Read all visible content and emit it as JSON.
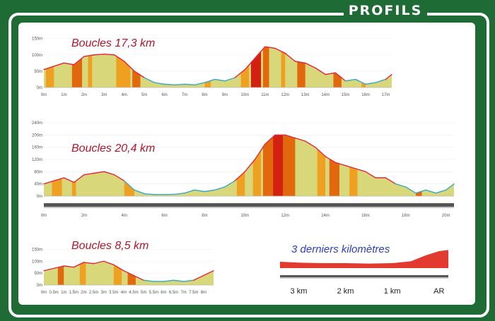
{
  "header": {
    "title": "PROFILS"
  },
  "colors": {
    "frame": "#1f6b35",
    "fill_base": "#d8d77a",
    "orange": "#f0a020",
    "dark_orange": "#e2680e",
    "red": "#d42010",
    "outline": "#e2263a",
    "outline_low": "#39a8c8",
    "inset_blue": "#2a3fbf"
  },
  "chart_data": [
    {
      "type": "area",
      "title": "Boucles 17,3 km",
      "x_ticks": [
        "0m",
        "1m",
        "2m",
        "3m",
        "4m",
        "5m",
        "6m",
        "7m",
        "8m",
        "9m",
        "10m",
        "11m",
        "12m",
        "13m",
        "14m",
        "15m",
        "16m",
        "17m"
      ],
      "y_ticks": [
        "0m",
        "50m",
        "100m",
        "150m"
      ],
      "ylim": [
        0,
        160
      ],
      "xlim": [
        0,
        17.3
      ],
      "x": [
        0,
        0.5,
        1,
        1.5,
        2,
        2.5,
        3,
        3.5,
        4,
        4.5,
        5,
        5.5,
        6,
        6.5,
        7,
        7.5,
        8,
        8.5,
        9,
        9.5,
        10,
        10.5,
        11,
        11.5,
        12,
        12.5,
        13,
        13.5,
        14,
        14.5,
        15,
        15.5,
        16,
        16.5,
        17,
        17.3
      ],
      "y": [
        55,
        65,
        75,
        70,
        95,
        100,
        102,
        100,
        80,
        50,
        30,
        15,
        10,
        8,
        10,
        8,
        15,
        25,
        20,
        30,
        55,
        90,
        125,
        120,
        105,
        80,
        75,
        60,
        40,
        45,
        20,
        25,
        10,
        15,
        25,
        40
      ],
      "bands": [
        {
          "from": 0.1,
          "to": 0.5,
          "color": "orange"
        },
        {
          "from": 1.4,
          "to": 1.9,
          "color": "dark_orange"
        },
        {
          "from": 2.2,
          "to": 2.4,
          "color": "orange"
        },
        {
          "from": 3.6,
          "to": 4.3,
          "color": "orange"
        },
        {
          "from": 4.4,
          "to": 4.8,
          "color": "dark_orange"
        },
        {
          "from": 8.0,
          "to": 8.3,
          "color": "orange"
        },
        {
          "from": 9.8,
          "to": 10.2,
          "color": "orange"
        },
        {
          "from": 10.3,
          "to": 10.8,
          "color": "red"
        },
        {
          "from": 10.9,
          "to": 11.2,
          "color": "dark_orange"
        },
        {
          "from": 11.8,
          "to": 12.0,
          "color": "orange"
        },
        {
          "from": 12.6,
          "to": 13.0,
          "color": "dark_orange"
        },
        {
          "from": 14.4,
          "to": 14.8,
          "color": "dark_orange"
        },
        {
          "from": 15.8,
          "to": 16.0,
          "color": "orange"
        }
      ]
    },
    {
      "type": "area",
      "title": "Boucles 20,4 km",
      "x_ticks": [
        "0m",
        "2m",
        "4m",
        "6m",
        "8m",
        "10m",
        "12m",
        "14m",
        "16m",
        "18m",
        "20m"
      ],
      "y_ticks": [
        "0m",
        "40m",
        "80m",
        "120m",
        "160m",
        "200m",
        "240m"
      ],
      "ylim": [
        0,
        240
      ],
      "xlim": [
        0,
        20.4
      ],
      "x": [
        0,
        0.5,
        1,
        1.5,
        2,
        2.5,
        3,
        3.5,
        4,
        4.5,
        5,
        5.5,
        6,
        6.5,
        7,
        7.5,
        8,
        8.5,
        9,
        9.5,
        10,
        10.5,
        11,
        11.5,
        12,
        12.5,
        13,
        13.5,
        14,
        14.5,
        15,
        15.5,
        16,
        16.5,
        17,
        17.5,
        18,
        18.5,
        19,
        19.5,
        20,
        20.4
      ],
      "y": [
        40,
        50,
        60,
        45,
        70,
        75,
        80,
        70,
        50,
        20,
        8,
        5,
        5,
        6,
        10,
        20,
        15,
        20,
        30,
        50,
        80,
        120,
        170,
        200,
        200,
        190,
        180,
        160,
        130,
        110,
        100,
        90,
        80,
        60,
        60,
        40,
        30,
        10,
        20,
        10,
        20,
        40
      ],
      "bands": [
        {
          "from": 0.4,
          "to": 0.9,
          "color": "orange"
        },
        {
          "from": 1.4,
          "to": 1.6,
          "color": "orange"
        },
        {
          "from": 4.0,
          "to": 4.5,
          "color": "orange"
        },
        {
          "from": 9.6,
          "to": 10.0,
          "color": "orange"
        },
        {
          "from": 10.4,
          "to": 10.8,
          "color": "orange"
        },
        {
          "from": 10.9,
          "to": 11.4,
          "color": "dark_orange"
        },
        {
          "from": 11.4,
          "to": 11.9,
          "color": "red"
        },
        {
          "from": 11.9,
          "to": 12.5,
          "color": "dark_orange"
        },
        {
          "from": 13.6,
          "to": 14.0,
          "color": "orange"
        },
        {
          "from": 14.2,
          "to": 14.7,
          "color": "dark_orange"
        },
        {
          "from": 15.2,
          "to": 15.6,
          "color": "orange"
        },
        {
          "from": 18.5,
          "to": 18.8,
          "color": "dark_orange"
        }
      ]
    },
    {
      "type": "area",
      "title": "Boucles 8,5 km",
      "x_ticks": [
        "0m",
        "0.5m",
        "1m",
        "1.5m",
        "2m",
        "2.5m",
        "3m",
        "3.5m",
        "4m",
        "4.5m",
        "5m",
        "5.5m",
        "6m",
        "6.5m",
        "7m",
        "7.5m",
        "8m"
      ],
      "y_ticks": [
        "0m",
        "50m",
        "100m",
        "150m"
      ],
      "ylim": [
        0,
        160
      ],
      "xlim": [
        0,
        8.5
      ],
      "x": [
        0,
        0.5,
        1,
        1.5,
        2,
        2.5,
        3,
        3.5,
        4,
        4.5,
        5,
        5.5,
        6,
        6.5,
        7,
        7.5,
        8,
        8.5
      ],
      "y": [
        60,
        70,
        80,
        75,
        95,
        90,
        100,
        85,
        60,
        40,
        20,
        15,
        15,
        20,
        15,
        20,
        40,
        60
      ],
      "bands": [
        {
          "from": 0.7,
          "to": 1.0,
          "color": "dark_orange"
        },
        {
          "from": 1.8,
          "to": 2.1,
          "color": "orange"
        },
        {
          "from": 3.5,
          "to": 3.9,
          "color": "orange"
        },
        {
          "from": 4.2,
          "to": 4.6,
          "color": "dark_orange"
        }
      ]
    },
    {
      "type": "area",
      "title": "3 derniers kilomètres",
      "x_ticks": [
        "3 km",
        "2 km",
        "1 km",
        "AR"
      ],
      "xlim": [
        -3.4,
        0.2
      ],
      "ylim": [
        0,
        100
      ],
      "x": [
        -3.4,
        -3.0,
        -2.5,
        -2.0,
        -1.5,
        -1.0,
        -0.6,
        -0.3,
        0.0,
        0.2
      ],
      "y": [
        28,
        24,
        22,
        22,
        20,
        22,
        30,
        55,
        75,
        80
      ]
    }
  ]
}
